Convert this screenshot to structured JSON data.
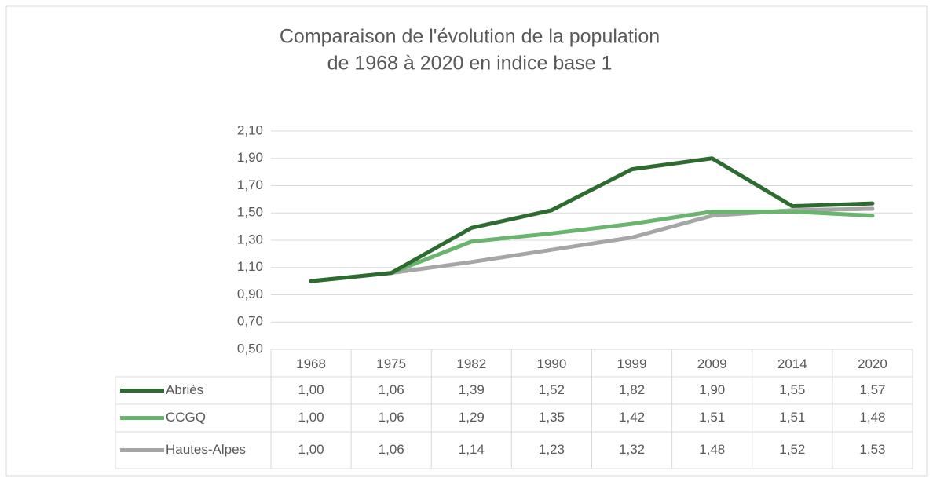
{
  "chart_data": {
    "type": "line",
    "title": "Comparaison de l'évolution de la population",
    "subtitle": "de 1968 à 2020 en indice base 1",
    "categories": [
      "1968",
      "1975",
      "1982",
      "1990",
      "1999",
      "2009",
      "2014",
      "2020"
    ],
    "series": [
      {
        "name": "Abriès",
        "color": "#2e6b30",
        "values": [
          1.0,
          1.06,
          1.39,
          1.52,
          1.82,
          1.9,
          1.55,
          1.57
        ],
        "value_labels": [
          "1,00",
          "1,06",
          "1,39",
          "1,52",
          "1,82",
          "1,90",
          "1,55",
          "1,57"
        ]
      },
      {
        "name": "CCGQ",
        "color": "#6ab56e",
        "values": [
          1.0,
          1.06,
          1.29,
          1.35,
          1.42,
          1.51,
          1.51,
          1.48
        ],
        "value_labels": [
          "1,00",
          "1,06",
          "1,29",
          "1,35",
          "1,42",
          "1,51",
          "1,51",
          "1,48"
        ]
      },
      {
        "name": "Hautes-Alpes",
        "color": "#a6a6a6",
        "values": [
          1.0,
          1.06,
          1.14,
          1.23,
          1.32,
          1.48,
          1.52,
          1.53
        ],
        "value_labels": [
          "1,00",
          "1,06",
          "1,14",
          "1,23",
          "1,32",
          "1,48",
          "1,52",
          "1,53"
        ]
      }
    ],
    "ylim": [
      0.5,
      2.1
    ],
    "yticks": [
      {
        "value": 0.5,
        "label": "0,50"
      },
      {
        "value": 0.7,
        "label": "0,70"
      },
      {
        "value": 0.9,
        "label": "0,90"
      },
      {
        "value": 1.1,
        "label": "1,10"
      },
      {
        "value": 1.3,
        "label": "1,30"
      },
      {
        "value": 1.5,
        "label": "1,50"
      },
      {
        "value": 1.7,
        "label": "1,70"
      },
      {
        "value": 1.9,
        "label": "1,90"
      },
      {
        "value": 2.1,
        "label": "2,10"
      }
    ],
    "grid": true
  }
}
